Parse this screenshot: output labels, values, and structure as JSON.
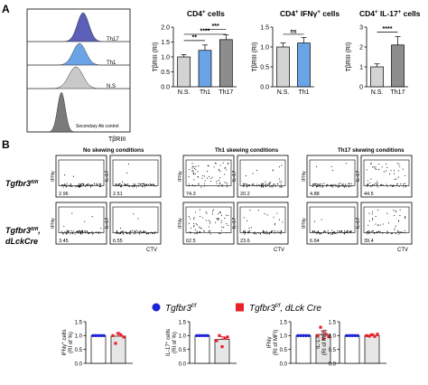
{
  "panel_a": {
    "letter": "A",
    "histogram": {
      "labels": [
        "Th17",
        "Th1",
        "N.S",
        "Secondary Ab control"
      ],
      "xlabel": "TβRIII",
      "colors": [
        "#5b5fb8",
        "#6aa4e6",
        "#c9c9c9",
        "#7a7a7a"
      ]
    },
    "bars": [
      {
        "title_main": "CD4",
        "title_sup": "+",
        "title_rest": " cells",
        "ylabel": "TβRIII (RI)",
        "yticks": [
          "0.0",
          "0.5",
          "1.0",
          "1.5",
          "2.0"
        ],
        "ymax": 2.0,
        "categories": [
          "N.S.",
          "Th1",
          "Th17"
        ],
        "values": [
          1.0,
          1.22,
          1.58
        ],
        "errors": [
          0.08,
          0.18,
          0.16
        ],
        "colors": [
          "#d3d3d3",
          "#6aa4e6",
          "#8d8d8d"
        ],
        "sig": [
          {
            "from": 0,
            "to": 1,
            "label": "**",
            "level": 1.55
          },
          {
            "from": 0,
            "to": 2,
            "label": "****",
            "level": 1.76
          },
          {
            "from": 1,
            "to": 2,
            "label": "***",
            "level": 1.93
          }
        ]
      },
      {
        "title_main": "CD4",
        "title_sup": "+",
        "title_rest": " IFNγ",
        "title_sup2": "+",
        "title_rest2": " cells",
        "ylabel": "TβRIII (RI)",
        "yticks": [
          "0.0",
          "0.5",
          "1.0",
          "1.5"
        ],
        "ymax": 1.5,
        "categories": [
          "N.S.",
          "Th1"
        ],
        "values": [
          1.0,
          1.1
        ],
        "errors": [
          0.1,
          0.14
        ],
        "colors": [
          "#d3d3d3",
          "#6aa4e6"
        ],
        "sig": [
          {
            "from": 0,
            "to": 1,
            "label": "ns",
            "level": 1.32
          }
        ]
      },
      {
        "title_main": "CD4",
        "title_sup": "+",
        "title_rest": " IL-17",
        "title_sup2": "+",
        "title_rest2": " cells",
        "ylabel": "TβRIII (RI)",
        "yticks": [
          "0",
          "1",
          "2",
          "3"
        ],
        "ymax": 3,
        "categories": [
          "N.S.",
          "Th17"
        ],
        "values": [
          1.0,
          2.1
        ],
        "errors": [
          0.15,
          0.42
        ],
        "colors": [
          "#d3d3d3",
          "#8d8d8d"
        ],
        "sig": [
          {
            "from": 0,
            "to": 1,
            "label": "****",
            "level": 2.75
          }
        ]
      }
    ]
  },
  "panel_b": {
    "letter": "B",
    "conditions": [
      "No skewing conditions",
      "Th1 skewing conditions",
      "Th17 skewing conditions"
    ],
    "row_labels": [
      {
        "gene": "Tgfbr3",
        "sup": "fl/fl",
        "line2": ""
      },
      {
        "gene": "Tgfbr3",
        "sup": "fl/fl",
        "line2": "dLckCre"
      }
    ],
    "ylabels": [
      "IFNγ",
      "IL-17"
    ],
    "xlabel": "CTV",
    "percentages": [
      [
        [
          "2.96",
          "2.51"
        ],
        [
          "74.3",
          "20.2"
        ],
        [
          "4.88",
          "44.5"
        ]
      ],
      [
        [
          "3.45",
          "6.55"
        ],
        [
          "62.5",
          "23.6"
        ],
        [
          "6.64",
          "39.4"
        ]
      ]
    ]
  },
  "legend": {
    "items": [
      {
        "gene": "Tgfbr3",
        "sup": "f/f",
        "rest": "",
        "color": "#1f23d8",
        "shape": "circle"
      },
      {
        "gene": "Tgfbr3",
        "sup": "f/f",
        "rest": ", dLck Cre",
        "color": "#e8202a",
        "shape": "square"
      }
    ]
  },
  "panel_c": {
    "ylabels": [
      [
        "IFNγ",
        "+",
        " cells",
        "(RI of %)"
      ],
      [
        "IL-17",
        "+",
        " cells",
        "(RI of %)"
      ],
      [
        "IFNγ",
        "",
        "",
        "(RI of MFI)"
      ],
      [
        "IL-17",
        "",
        "",
        "(RI of MFI)"
      ]
    ],
    "yticks": [
      "0.0",
      "0.5",
      "1.0",
      "1.5"
    ],
    "ymax": 1.5,
    "values": [
      [
        1.0,
        0.98
      ],
      [
        1.0,
        0.86
      ],
      [
        1.0,
        1.04
      ],
      [
        1.0,
        1.0
      ]
    ],
    "errors": [
      [
        0,
        0.1
      ],
      [
        0,
        0.1
      ],
      [
        0,
        0.13
      ],
      [
        0,
        0.05
      ]
    ],
    "points": [
      [
        [
          1,
          1,
          1,
          1,
          1
        ],
        [
          1.0,
          0.72,
          1.08,
          1.02,
          0.95
        ]
      ],
      [
        [
          1,
          1,
          1,
          1,
          1
        ],
        [
          0.82,
          1.0,
          0.6,
          0.9,
          0.95
        ]
      ],
      [
        [
          1,
          1,
          1,
          1,
          1
        ],
        [
          1.0,
          1.3,
          0.88,
          1.05,
          0.96
        ]
      ],
      [
        [
          1,
          1,
          1,
          1,
          1
        ],
        [
          1.0,
          0.98,
          1.03,
          0.97,
          1.05
        ]
      ]
    ],
    "colors": [
      "#1f23d8",
      "#e8202a"
    ]
  }
}
